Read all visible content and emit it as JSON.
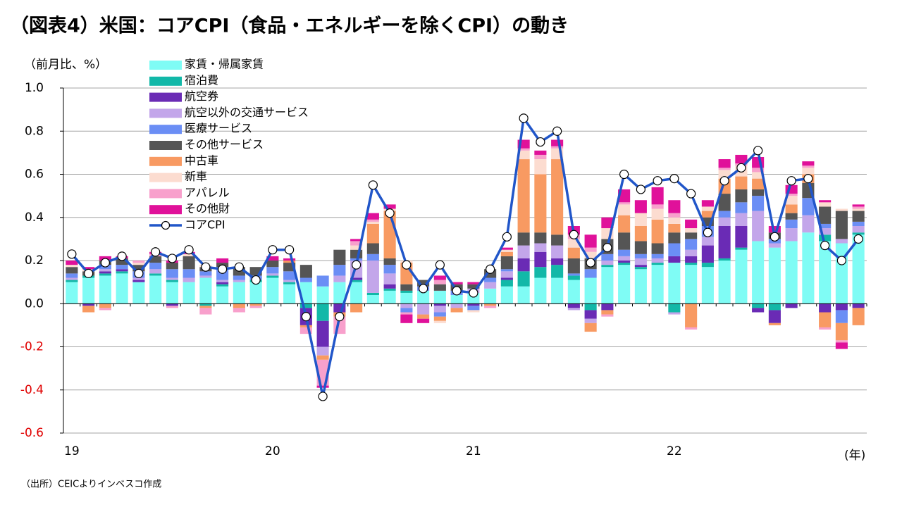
{
  "chart_data": {
    "type": "stacked_bar_line",
    "title": "（図表4）米国：コアCPI（食品・エネルギーを除くCPI）の動き",
    "y_label": "（前月比、%）",
    "x_unit": "(年)",
    "source": "（出所）CEICよりインベスコ作成",
    "categories": [
      "19",
      null,
      null,
      null,
      null,
      null,
      null,
      null,
      null,
      null,
      null,
      null,
      "20",
      null,
      null,
      null,
      null,
      null,
      null,
      null,
      null,
      null,
      null,
      null,
      "21",
      null,
      null,
      null,
      null,
      null,
      null,
      null,
      null,
      null,
      null,
      null,
      "22",
      null,
      null,
      null,
      null,
      null,
      null,
      null,
      null,
      null,
      null,
      null
    ],
    "ylim": [
      -0.6,
      1.0
    ],
    "yticks": [
      {
        "value": 1.0,
        "label": "1.0"
      },
      {
        "value": 0.8,
        "label": "0.8"
      },
      {
        "value": 0.6,
        "label": "0.6"
      },
      {
        "value": 0.4,
        "label": "0.4"
      },
      {
        "value": 0.2,
        "label": "0.2"
      },
      {
        "value": 0,
        "label": "0.0"
      },
      {
        "value": -0.2,
        "label": "-0.2"
      },
      {
        "value": -0.4,
        "label": "-0.4"
      },
      {
        "value": -0.6,
        "label": "-0.6"
      }
    ],
    "grid": true,
    "series": [
      {
        "name": "家賃・帰属家賃",
        "color": "#7ffcf5",
        "values": [
          0.1,
          0.12,
          0.13,
          0.14,
          0.1,
          0.13,
          0.1,
          0.1,
          0.12,
          0.08,
          0.1,
          0.1,
          0.12,
          0.09,
          0.1,
          0.08,
          0.1,
          0.1,
          0.04,
          0.06,
          0.05,
          0.06,
          0.06,
          0.04,
          0.05,
          0.07,
          0.08,
          0.08,
          0.12,
          0.12,
          0.11,
          0.12,
          0.17,
          0.18,
          0.16,
          0.18,
          0.19,
          0.18,
          0.17,
          0.2,
          0.25,
          0.29,
          0.26,
          0.29,
          0.33,
          0.29,
          0.28,
          0.32
        ]
      },
      {
        "name": "宿泊費",
        "color": "#12b8a8",
        "values": [
          0.01,
          0.01,
          0.01,
          0.01,
          0,
          0.01,
          0.01,
          0,
          -0.01,
          0.01,
          0,
          0.01,
          0.01,
          0.01,
          -0.02,
          -0.08,
          0,
          0.01,
          0.01,
          0.01,
          0.01,
          0,
          0,
          0,
          0,
          0,
          0.03,
          0.07,
          0.05,
          0.06,
          0.02,
          -0.03,
          0.01,
          0.01,
          0.01,
          0.01,
          -0.04,
          0.01,
          0.02,
          0.01,
          0.01,
          -0.02,
          -0.03,
          0,
          0,
          0.03,
          0,
          0.01
        ]
      },
      {
        "name": "航空券",
        "color": "#6a2bb5",
        "values": [
          0,
          -0.01,
          0.01,
          0.01,
          0.01,
          0,
          -0.01,
          0,
          0,
          0.01,
          0,
          0,
          0,
          0,
          -0.08,
          -0.12,
          -0.04,
          0.01,
          0,
          0.02,
          0,
          0,
          -0.01,
          0,
          -0.01,
          0,
          0.01,
          0.06,
          0.07,
          0.03,
          -0.02,
          -0.04,
          -0.03,
          0.01,
          0.01,
          0,
          0.03,
          0.03,
          0.08,
          0.15,
          0.1,
          -0.02,
          -0.06,
          -0.02,
          0,
          -0.04,
          -0.03,
          -0.02
        ]
      },
      {
        "name": "航空以外の交通サービス",
        "color": "#c3a6ea",
        "values": [
          0.01,
          0,
          0.01,
          0,
          0.01,
          0.02,
          0.01,
          0.02,
          0.01,
          0.01,
          0.01,
          0,
          0.01,
          0.01,
          0,
          -0.04,
          0.03,
          0.08,
          0.15,
          0.05,
          -0.02,
          -0.05,
          -0.03,
          -0.02,
          0.02,
          0.03,
          0.03,
          0.06,
          0.04,
          0.06,
          -0.01,
          -0.02,
          0.02,
          0.02,
          0.03,
          0.02,
          -0.01,
          0.03,
          0.04,
          0.04,
          0.06,
          0.14,
          0.02,
          0.06,
          0.08,
          0.03,
          0.02,
          0.03
        ]
      },
      {
        "name": "医療サービス",
        "color": "#6b8ef5",
        "values": [
          0.02,
          0,
          0.02,
          0.02,
          0.03,
          0.03,
          0.04,
          0.04,
          0.02,
          0.06,
          0.02,
          0.02,
          0.03,
          0.04,
          0.02,
          0.05,
          0.05,
          0.01,
          0.03,
          0.04,
          -0.02,
          0.02,
          -0.02,
          0.02,
          -0.02,
          0.02,
          0.01,
          0,
          0,
          0,
          0.01,
          0.04,
          0.03,
          0.03,
          0.02,
          0.02,
          0.06,
          0.05,
          0.05,
          0.03,
          0.05,
          0.07,
          0.02,
          0.04,
          0.08,
          0.02,
          -0.06,
          0.02
        ]
      },
      {
        "name": "その他サービス",
        "color": "#555555",
        "values": [
          0.03,
          0.02,
          0.02,
          0.03,
          0.03,
          0.03,
          0.03,
          0.06,
          0.02,
          0.02,
          0.04,
          0.04,
          0.03,
          0.04,
          0.06,
          0,
          0.07,
          0.04,
          0.05,
          0.03,
          0.03,
          0.03,
          0.03,
          0.03,
          0.02,
          0.04,
          0.06,
          0.06,
          0.05,
          0.05,
          0.07,
          0.05,
          0.07,
          0.08,
          0.06,
          0.05,
          0.05,
          0.03,
          0.04,
          0.08,
          0.06,
          0.03,
          0.03,
          0.03,
          0.07,
          0.08,
          0.13,
          0.05
        ]
      },
      {
        "name": "中古車",
        "color": "#f89a62",
        "values": [
          0,
          -0.03,
          -0.02,
          0,
          0,
          0,
          0,
          0,
          -0.01,
          0,
          -0.02,
          -0.01,
          0,
          0.01,
          -0.01,
          -0.02,
          -0.02,
          -0.04,
          0.09,
          0.22,
          0.1,
          -0.02,
          -0.02,
          -0.02,
          0,
          -0.01,
          0.02,
          0.34,
          0.27,
          0.35,
          0.05,
          -0.04,
          -0.02,
          0.08,
          0.07,
          0.11,
          0.04,
          -0.11,
          0.03,
          0.07,
          0.06,
          0.05,
          -0.01,
          0.04,
          0.04,
          -0.07,
          -0.08,
          -0.08
        ]
      },
      {
        "name": "新車",
        "color": "#fcdcd0",
        "values": [
          0.01,
          0.01,
          0,
          0,
          0.01,
          0,
          0,
          0.01,
          0.01,
          0,
          0,
          0,
          0,
          0,
          0,
          0,
          0,
          0.02,
          0.01,
          0.01,
          0.01,
          0,
          -0.01,
          0,
          -0.01,
          0,
          0.01,
          0.04,
          0.07,
          0.05,
          0.04,
          0.03,
          0.05,
          0.05,
          0.06,
          0.05,
          0.03,
          0.02,
          0.02,
          0.04,
          0.05,
          0.03,
          0,
          0.04,
          0.03,
          0.02,
          0.01,
          0.01
        ]
      },
      {
        "name": "アパレル",
        "color": "#f8a0cc",
        "values": [
          0,
          0,
          -0.01,
          0,
          0.01,
          0.01,
          -0.01,
          0,
          -0.03,
          0,
          -0.02,
          -0.01,
          0,
          0,
          -0.03,
          -0.12,
          -0.08,
          0.02,
          0.01,
          0,
          -0.01,
          0,
          0.02,
          0,
          0,
          -0.01,
          0,
          0.01,
          0.02,
          0.01,
          0.02,
          0.02,
          -0.01,
          0.01,
          0,
          0.02,
          0.02,
          -0.01,
          0,
          0.01,
          0.01,
          0.02,
          0,
          0.01,
          0.01,
          -0.01,
          -0.01,
          0.01
        ]
      },
      {
        "name": "その他財",
        "color": "#e0119a",
        "values": [
          0.02,
          0.01,
          0.02,
          0.01,
          0,
          0.01,
          0.01,
          0.01,
          0,
          0.02,
          0,
          0,
          0.02,
          0.01,
          0,
          -0.01,
          0,
          0.01,
          0.03,
          0.02,
          -0.04,
          -0.02,
          0.02,
          0.01,
          0.01,
          0,
          0.01,
          0.04,
          0.02,
          0.03,
          0.04,
          0.06,
          0.05,
          0.06,
          0.06,
          0.08,
          0.06,
          0.04,
          0.03,
          0.04,
          0.04,
          0.05,
          0.03,
          0.04,
          0.02,
          0.01,
          -0.03,
          0.01
        ]
      }
    ],
    "line": {
      "name": "コアCPI",
      "color": "#2156c9",
      "values": [
        0.23,
        0.14,
        0.19,
        0.22,
        0.14,
        0.24,
        0.21,
        0.25,
        0.17,
        0.16,
        0.17,
        0.11,
        0.25,
        0.25,
        -0.06,
        -0.43,
        -0.06,
        0.18,
        0.55,
        0.42,
        0.18,
        0.07,
        0.18,
        0.06,
        0.05,
        0.16,
        0.31,
        0.86,
        0.75,
        0.8,
        0.32,
        0.19,
        0.26,
        0.6,
        0.53,
        0.57,
        0.58,
        0.51,
        0.33,
        0.57,
        0.63,
        0.71,
        0.31,
        0.57,
        0.58,
        0.27,
        0.2,
        0.3
      ]
    }
  }
}
